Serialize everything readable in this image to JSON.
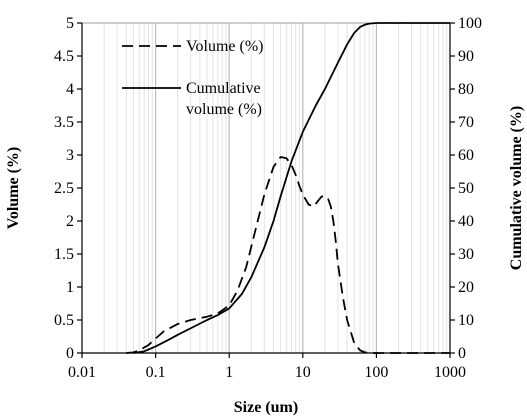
{
  "chart_data": {
    "type": "line",
    "x_scale": "log",
    "xlabel": "Size (um)",
    "ylabel": "Volume (%)",
    "y2label": "Cumulative volume (%)",
    "xlim": [
      0.01,
      1000
    ],
    "ylim": [
      0,
      5
    ],
    "y2lim": [
      0,
      100
    ],
    "x_ticks": [
      "0.01",
      "0.1",
      "1",
      "10",
      "100",
      "1000"
    ],
    "y_ticks": [
      "0",
      "0.5",
      "1",
      "1.5",
      "2",
      "2.5",
      "3",
      "3.5",
      "4",
      "4.5",
      "5"
    ],
    "y2_ticks": [
      "0",
      "10",
      "20",
      "30",
      "40",
      "50",
      "60",
      "70",
      "80",
      "90",
      "100"
    ],
    "grid": "vertical minor log gridlines",
    "legend_position": "top-left",
    "series": [
      {
        "name": "Volume (%)",
        "axis": "left",
        "style": "dashed",
        "color": "#000000",
        "x": [
          0.04,
          0.05,
          0.06,
          0.08,
          0.1,
          0.13,
          0.2,
          0.3,
          0.5,
          0.7,
          1.0,
          1.3,
          1.7,
          2.2,
          3.0,
          4.0,
          5.0,
          6.0,
          7.0,
          8.0,
          9.0,
          10.0,
          12.0,
          14.0,
          16.0,
          18.0,
          20.0,
          22.0,
          24.0,
          26.0,
          28.0,
          30.0,
          35.0,
          40.0,
          50.0,
          60.0,
          70.0,
          80.0,
          100.0,
          1000.0
        ],
        "y": [
          0.0,
          0.01,
          0.04,
          0.12,
          0.22,
          0.33,
          0.44,
          0.5,
          0.55,
          0.6,
          0.72,
          0.95,
          1.3,
          1.8,
          2.4,
          2.82,
          2.97,
          2.95,
          2.85,
          2.7,
          2.53,
          2.4,
          2.25,
          2.22,
          2.3,
          2.37,
          2.38,
          2.34,
          2.22,
          2.0,
          1.7,
          1.35,
          0.85,
          0.5,
          0.15,
          0.04,
          0.01,
          0.0,
          0.0,
          0.0
        ]
      },
      {
        "name": "Cumulative volume (%)",
        "legend_label": [
          "Cumulative",
          "volume (%)"
        ],
        "axis": "right",
        "style": "solid",
        "color": "#000000",
        "x": [
          0.05,
          0.07,
          0.1,
          0.15,
          0.2,
          0.3,
          0.5,
          0.7,
          1.0,
          1.5,
          2.0,
          3.0,
          4.0,
          5.0,
          7.0,
          10.0,
          15.0,
          20.0,
          30.0,
          40.0,
          50.0,
          60.0,
          70.0,
          80.0,
          100.0,
          1000.0
        ],
        "y": [
          0.0,
          0.5,
          2.0,
          4.0,
          5.5,
          7.5,
          10.0,
          11.5,
          13.5,
          18.0,
          23.0,
          32.0,
          40.0,
          47.5,
          58.0,
          67.0,
          75.0,
          80.0,
          88.0,
          93.5,
          97.0,
          98.8,
          99.5,
          99.8,
          100.0,
          100.0
        ]
      }
    ]
  }
}
